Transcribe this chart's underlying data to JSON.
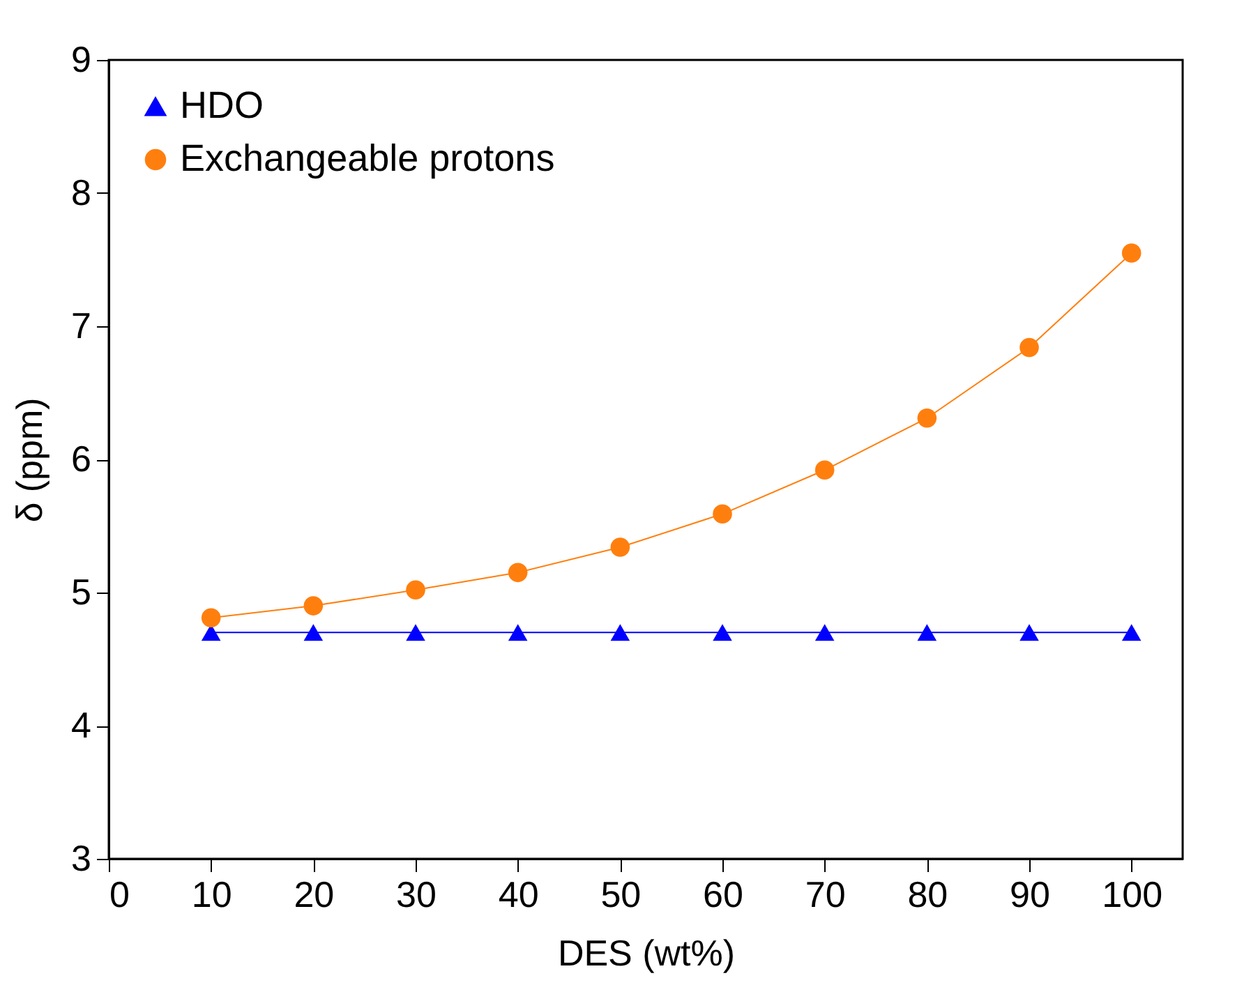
{
  "chart_data": {
    "type": "line",
    "xlabel": "DES (wt%)",
    "ylabel": "δ (ppm)",
    "x": [
      10,
      20,
      30,
      40,
      50,
      60,
      70,
      80,
      90,
      100
    ],
    "series": [
      {
        "name": "HDO",
        "color": "#0000ff",
        "marker": "triangle",
        "values": [
          4.7,
          4.7,
          4.7,
          4.7,
          4.7,
          4.7,
          4.7,
          4.7,
          4.7,
          4.7
        ]
      },
      {
        "name": "Exchangeable protons",
        "color": "#ff7f0e",
        "marker": "circle",
        "values": [
          4.81,
          4.9,
          5.02,
          5.15,
          5.34,
          5.59,
          5.92,
          6.31,
          6.84,
          7.55
        ]
      }
    ],
    "xlim": [
      0,
      105
    ],
    "xticks": [
      0,
      10,
      20,
      30,
      40,
      50,
      60,
      70,
      80,
      90,
      100
    ],
    "ylim": [
      3,
      9
    ],
    "yticks": [
      3,
      4,
      5,
      6,
      7,
      8,
      9
    ],
    "grid": false,
    "legend": "top left",
    "line_style": "solid"
  }
}
